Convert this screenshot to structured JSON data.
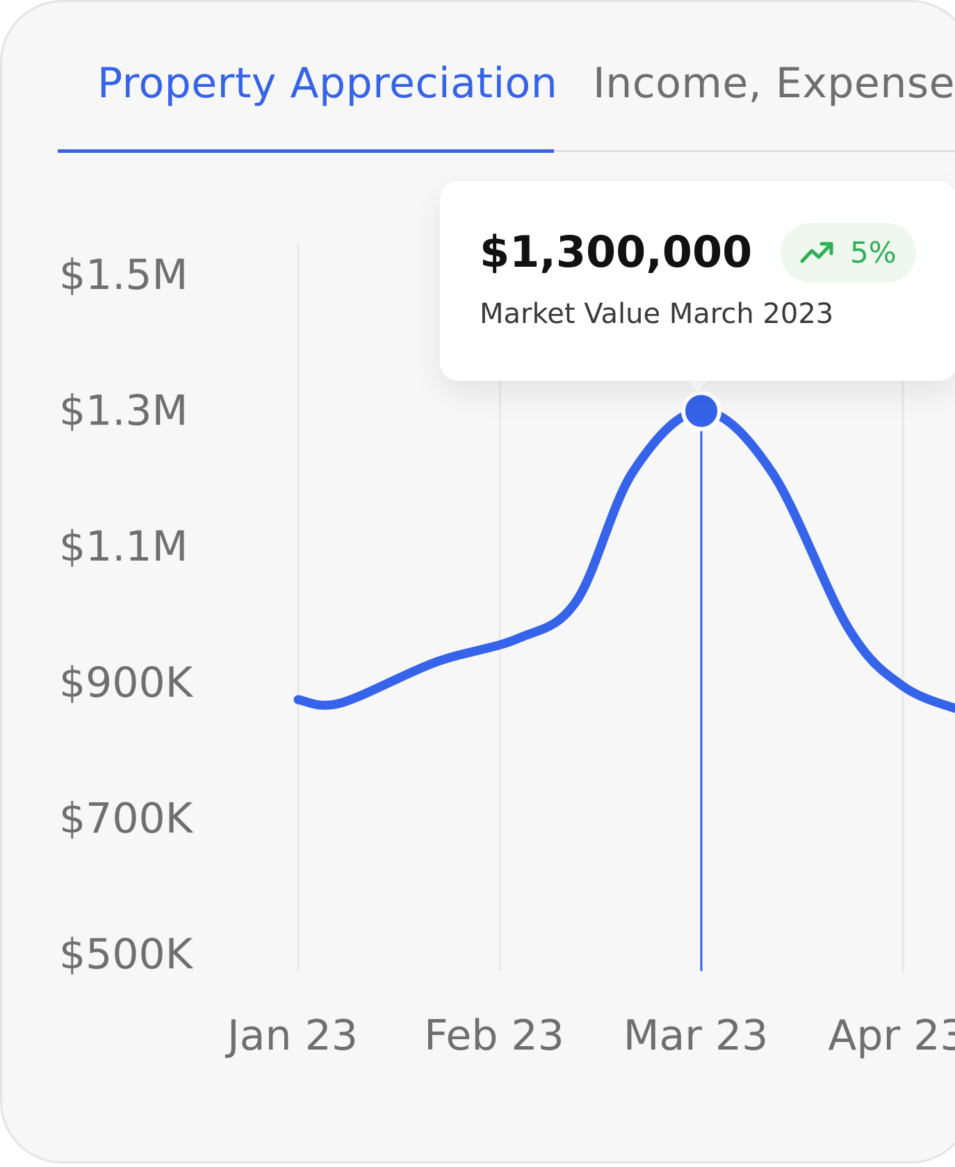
{
  "tabs": [
    {
      "label": "Property Appreciation",
      "active": true
    },
    {
      "label": "Income, Expense A",
      "active": false
    }
  ],
  "colors": {
    "accent": "#3563e9",
    "positive": "#2db055",
    "grid": "#e9e9e9",
    "axis_text": "#6f6f6f"
  },
  "tooltip": {
    "value": "$1,300,000",
    "caption": "Market Value March 2023",
    "change": "5%",
    "change_icon": "trending-up-icon"
  },
  "chart_data": {
    "type": "line",
    "x_tick_labels": [
      "Jan 23",
      "Feb 23",
      "Mar 23",
      "Apr 23"
    ],
    "y_tick_labels": [
      "$1.5M",
      "$1.3M",
      "$1.1M",
      "$900K",
      "$700K",
      "$500K"
    ],
    "y_ticks": [
      1500000,
      1300000,
      1100000,
      900000,
      700000,
      500000
    ],
    "ylim": [
      500000,
      1500000
    ],
    "xlim": [
      1,
      4.28
    ],
    "grid_x": true,
    "grid_y": false,
    "series": [
      {
        "values": [
          {
            "x": 1.0,
            "y": 875000
          },
          {
            "x": 1.21,
            "y": 870000
          },
          {
            "x": 1.68,
            "y": 930000
          },
          {
            "x": 2.09,
            "y": 965000
          },
          {
            "x": 2.38,
            "y": 1020000
          },
          {
            "x": 2.66,
            "y": 1210000
          },
          {
            "x": 3.0,
            "y": 1300000
          },
          {
            "x": 3.35,
            "y": 1210000
          },
          {
            "x": 3.73,
            "y": 980000
          },
          {
            "x": 4.0,
            "y": 895000
          },
          {
            "x": 4.28,
            "y": 860000
          }
        ]
      }
    ],
    "highlight": {
      "x": 3.0,
      "y": 1300000
    }
  }
}
